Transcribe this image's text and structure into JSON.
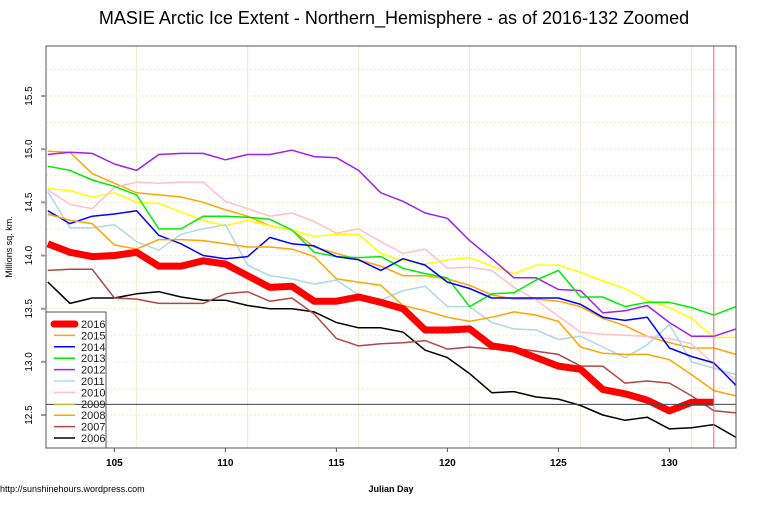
{
  "chart_data": {
    "type": "line",
    "title": "MASIE Arctic Ice Extent - Northern_Hemisphere - as of 2016-132 Zoomed",
    "xlabel": "Julian Day",
    "ylabel": "Millions sq. km.",
    "xlim": [
      101.92,
      133
    ],
    "ylim": [
      12.19,
      15.97
    ],
    "x_ticks": [
      105,
      110,
      115,
      120,
      125,
      130
    ],
    "y_ticks": [
      12.5,
      13.0,
      13.5,
      14.0,
      14.5,
      15.0,
      15.5
    ],
    "y_tick_labels": [
      "12.5",
      "13.0",
      "13.5",
      "14.0",
      "14.5",
      "15.0",
      "15.5"
    ],
    "grid": true,
    "reference_hline": 12.6,
    "current_day_vline": 132,
    "legend_position": "bottom-left",
    "x": [
      102,
      103,
      104,
      105,
      106,
      107,
      108,
      109,
      110,
      111,
      112,
      113,
      114,
      115,
      116,
      117,
      118,
      119,
      120,
      121,
      122,
      123,
      124,
      125,
      126,
      127,
      128,
      129,
      130,
      131,
      132,
      133
    ],
    "series": [
      {
        "name": "2006",
        "color": "#000000",
        "values": [
          13.75,
          13.55,
          13.6,
          13.6,
          13.64,
          13.66,
          13.61,
          13.58,
          13.58,
          13.53,
          13.5,
          13.5,
          13.47,
          13.37,
          13.32,
          13.32,
          13.28,
          13.11,
          13.04,
          12.89,
          12.71,
          12.72,
          12.67,
          12.65,
          12.59,
          12.5,
          12.45,
          12.48,
          12.37,
          12.38,
          12.41,
          12.29
        ]
      },
      {
        "name": "2007",
        "color": "#B04848",
        "values": [
          13.86,
          13.87,
          13.87,
          13.6,
          13.59,
          13.55,
          13.55,
          13.55,
          13.64,
          13.66,
          13.57,
          13.6,
          13.45,
          13.22,
          13.15,
          13.17,
          13.18,
          13.2,
          13.12,
          13.14,
          13.12,
          13.13,
          13.1,
          13.07,
          12.96,
          12.96,
          12.8,
          12.82,
          12.8,
          12.68,
          12.54,
          12.52
        ]
      },
      {
        "name": "2008",
        "color": "#FFA500",
        "values": [
          14.98,
          14.97,
          14.77,
          14.68,
          14.59,
          14.57,
          14.55,
          14.5,
          14.43,
          14.37,
          14.28,
          14.24,
          14.08,
          14.02,
          13.96,
          13.9,
          13.81,
          13.81,
          13.78,
          13.72,
          13.63,
          13.59,
          13.59,
          13.57,
          13.52,
          13.41,
          13.34,
          13.24,
          13.18,
          13.13,
          13.13,
          13.07
        ]
      },
      {
        "name": "2009",
        "color": "#FFFF00",
        "values": [
          14.63,
          14.61,
          14.55,
          14.59,
          14.5,
          14.49,
          14.41,
          14.33,
          14.28,
          14.33,
          14.28,
          14.24,
          14.18,
          14.2,
          14.2,
          14.02,
          13.95,
          13.92,
          13.96,
          13.98,
          13.9,
          13.83,
          13.91,
          13.91,
          13.84,
          13.76,
          13.69,
          13.58,
          13.51,
          13.41,
          13.23,
          13.23
        ]
      },
      {
        "name": "2010",
        "color": "#FFC0CB",
        "values": [
          14.62,
          14.48,
          14.44,
          14.64,
          14.69,
          14.68,
          14.69,
          14.69,
          14.51,
          14.44,
          14.37,
          14.4,
          14.32,
          14.21,
          14.25,
          14.13,
          14.02,
          14.06,
          13.88,
          13.89,
          13.86,
          13.7,
          13.58,
          13.43,
          13.28,
          13.26,
          13.25,
          13.24,
          13.22,
          13.17,
          12.98,
          12.83
        ]
      },
      {
        "name": "2011",
        "color": "#ADD8E6",
        "values": [
          14.6,
          14.26,
          14.26,
          14.29,
          14.13,
          14.05,
          14.2,
          14.25,
          14.29,
          13.91,
          13.81,
          13.78,
          13.73,
          13.77,
          13.63,
          13.58,
          13.67,
          13.71,
          13.52,
          13.52,
          13.37,
          13.31,
          13.3,
          13.21,
          13.24,
          13.14,
          13.04,
          13.16,
          13.35,
          13.0,
          12.94,
          12.88
        ]
      },
      {
        "name": "2012",
        "color": "#A020F0",
        "values": [
          14.95,
          14.97,
          14.96,
          14.86,
          14.8,
          14.95,
          14.96,
          14.96,
          14.9,
          14.95,
          14.95,
          14.99,
          14.93,
          14.92,
          14.8,
          14.59,
          14.51,
          14.4,
          14.35,
          14.14,
          13.97,
          13.79,
          13.79,
          13.68,
          13.67,
          13.46,
          13.48,
          13.53,
          13.37,
          13.24,
          13.24,
          13.31
        ]
      },
      {
        "name": "2013",
        "color": "#00EE00",
        "values": [
          14.84,
          14.8,
          14.71,
          14.65,
          14.57,
          14.25,
          14.25,
          14.37,
          14.37,
          14.36,
          14.34,
          14.24,
          14.03,
          13.99,
          13.98,
          13.99,
          13.88,
          13.83,
          13.79,
          13.52,
          13.64,
          13.65,
          13.77,
          13.86,
          13.61,
          13.61,
          13.52,
          13.56,
          13.56,
          13.51,
          13.44,
          13.52
        ]
      },
      {
        "name": "2014",
        "color": "#0000FF",
        "values": [
          14.42,
          14.3,
          14.37,
          14.39,
          14.42,
          14.19,
          14.11,
          14.0,
          13.97,
          13.99,
          14.17,
          14.11,
          14.09,
          13.99,
          13.96,
          13.86,
          13.97,
          13.91,
          13.75,
          13.69,
          13.6,
          13.6,
          13.6,
          13.6,
          13.54,
          13.42,
          13.39,
          13.42,
          13.13,
          13.05,
          12.99,
          12.78
        ]
      },
      {
        "name": "2015",
        "color": "#FFA500",
        "values": [
          14.39,
          14.33,
          14.3,
          14.1,
          14.06,
          14.15,
          14.15,
          14.14,
          14.11,
          14.08,
          14.08,
          14.06,
          13.99,
          13.78,
          13.75,
          13.72,
          13.53,
          13.48,
          13.42,
          13.38,
          13.42,
          13.47,
          13.44,
          13.38,
          13.14,
          13.08,
          13.07,
          13.07,
          13.02,
          12.88,
          12.73,
          12.68
        ]
      },
      {
        "name": "2016",
        "color": "#FF0000",
        "values": [
          14.11,
          14.03,
          13.99,
          14.0,
          14.03,
          13.9,
          13.9,
          13.95,
          13.92,
          13.81,
          13.7,
          13.71,
          13.57,
          13.57,
          13.61,
          13.56,
          13.5,
          13.3,
          13.3,
          13.31,
          13.15,
          13.12,
          13.04,
          12.96,
          12.93,
          12.74,
          12.7,
          12.64,
          12.54,
          12.62,
          12.62,
          null
        ]
      }
    ],
    "legend_order": [
      "2016",
      "2015",
      "2014",
      "2013",
      "2012",
      "2011",
      "2010",
      "2009",
      "2008",
      "2007",
      "2006"
    ]
  },
  "footer": {
    "url": "http://sunshinehours.wordpress.com"
  }
}
